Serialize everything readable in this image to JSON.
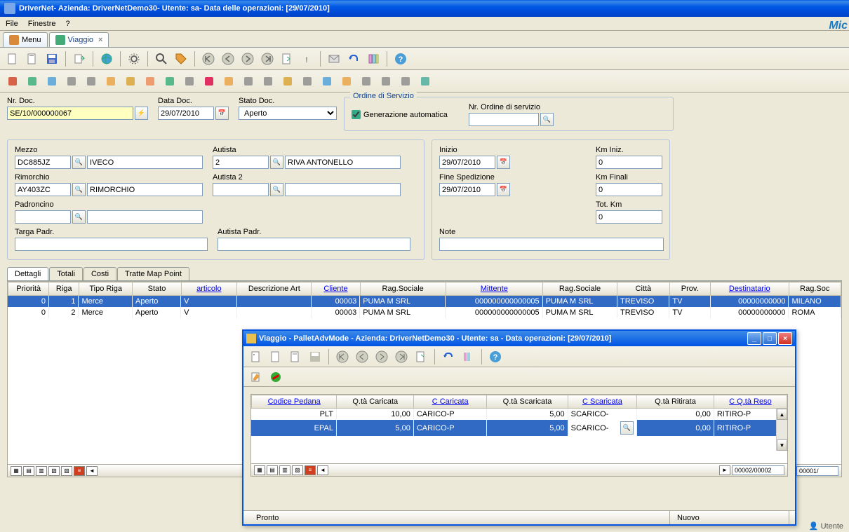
{
  "window": {
    "title": "DriverNet- Azienda: DriverNetDemo30- Utente: sa- Data delle operazioni: [29/07/2010]"
  },
  "menubar": {
    "items": [
      "File",
      "Finestre",
      "?"
    ]
  },
  "logo": "Mic",
  "tabs": [
    {
      "label": "Menu"
    },
    {
      "label": "Viaggio",
      "active": true,
      "closable": true
    }
  ],
  "doc": {
    "nr_label": "Nr. Doc.",
    "nr": "SE/10/000000067",
    "data_label": "Data Doc.",
    "data": "29/07/2010",
    "stato_label": "Stato Doc.",
    "stato": "Aperto"
  },
  "ordine": {
    "legend": "Ordine di Servizio",
    "auto_label": "Generazione automatica",
    "auto": true,
    "nr_label": "Nr. Ordine di servizio",
    "nr": ""
  },
  "mezzo": {
    "label": "Mezzo",
    "code": "DC885JZ",
    "desc": "IVECO"
  },
  "rimorchio": {
    "label": "Rimorchio",
    "code": "AY403ZC",
    "desc": "RIMORCHIO"
  },
  "padroncino": {
    "label": "Padroncino",
    "code": "",
    "desc": ""
  },
  "targa": {
    "label": "Targa Padr.",
    "val": ""
  },
  "autista": {
    "label": "Autista",
    "code": "2",
    "desc": "RIVA ANTONELLO"
  },
  "autista2": {
    "label": "Autista 2",
    "code": "",
    "desc": ""
  },
  "autista_padr": {
    "label": "Autista Padr.",
    "val": ""
  },
  "date": {
    "inizio_label": "Inizio",
    "inizio": "29/07/2010",
    "fine_label": "Fine Spedizione",
    "fine": "29/07/2010"
  },
  "km": {
    "iniz_label": "Km Iniz.",
    "iniz": "0",
    "fin_label": "Km Finali",
    "fin": "0",
    "tot_label": "Tot. Km",
    "tot": "0"
  },
  "note": {
    "label": "Note",
    "val": ""
  },
  "subtabs": [
    "Dettagli",
    "Totali",
    "Costi",
    "Tratte Map Point"
  ],
  "grid": {
    "columns": [
      "Priorità",
      "Riga",
      "Tipo Riga",
      "Stato",
      "articolo",
      "Descrizione Art",
      "Cliente",
      "Rag.Sociale",
      "Mittente",
      "Rag.Sociale",
      "Città",
      "Prov.",
      "Destinatario",
      "Rag.Soc"
    ],
    "link_cols": [
      4,
      6,
      8,
      12
    ],
    "widths": [
      55,
      40,
      72,
      65,
      75,
      100,
      65,
      115,
      130,
      100,
      70,
      55,
      105,
      70
    ],
    "rows": [
      {
        "sel": true,
        "cells": [
          "0",
          "1",
          "Merce",
          "Aperto",
          "V",
          "",
          "00003",
          "PUMA M SRL",
          "000000000000005",
          "PUMA M SRL",
          "TREVISO",
          "TV",
          "00000000000",
          "MILANO"
        ]
      },
      {
        "sel": false,
        "cells": [
          "0",
          "2",
          "Merce",
          "Aperto",
          "V",
          "",
          "00003",
          "PUMA M SRL",
          "000000000000005",
          "PUMA M SRL",
          "TREVISO",
          "TV",
          "00000000000",
          "ROMA"
        ]
      }
    ],
    "nav_counter": "00001/"
  },
  "child": {
    "title": "Viaggio - PalletAdvMode - Azienda: DriverNetDemo30 - Utente: sa - Data operazioni: [29/07/2010]",
    "grid": {
      "columns": [
        "Codice Pedana",
        "Q.tà Caricata",
        "C Caricata",
        "Q.tà Scaricata",
        "C Scaricata",
        "Q.tà Ritirata",
        "C Q.tà Reso"
      ],
      "link_cols": [
        0,
        2,
        4,
        6
      ],
      "widths": [
        105,
        95,
        90,
        100,
        85,
        95,
        90
      ],
      "rows": [
        {
          "sel": false,
          "cells": [
            "PLT",
            "10,00",
            "CARICO-P",
            "5,00",
            "SCARICO-",
            "0,00",
            "RITIRO-P"
          ]
        },
        {
          "sel": true,
          "cells": [
            "EPAL",
            "5,00",
            "CARICO-P",
            "5,00",
            "SCARICO-",
            "0,00",
            "RITIRO-P"
          ],
          "edit_col": 4
        }
      ],
      "nav_counter": "00002/00002"
    },
    "status": {
      "left": "Pronto",
      "right": "Nuovo"
    }
  },
  "bottom_status": "Utente"
}
